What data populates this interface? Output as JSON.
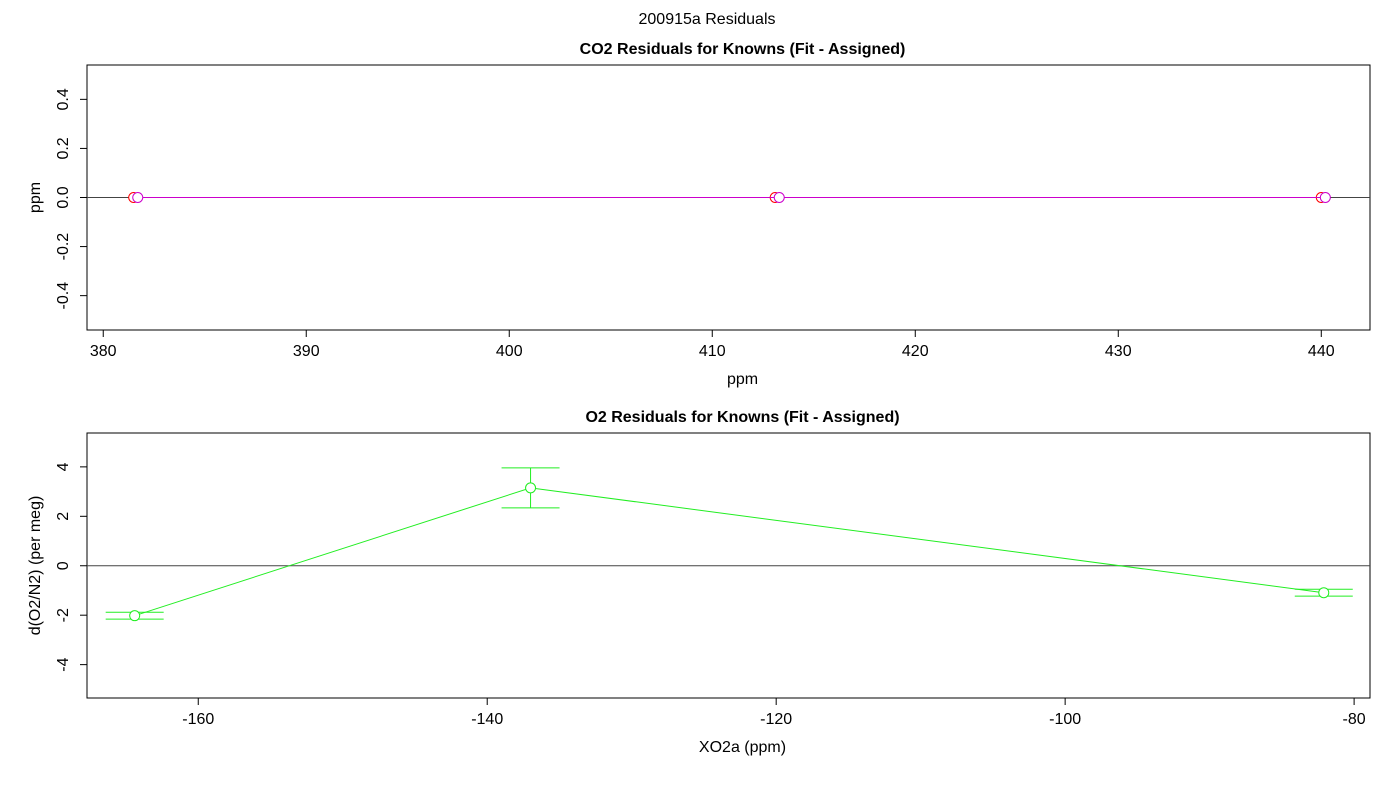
{
  "title": "200915a  Residuals",
  "chart_data": [
    {
      "type": "scatter",
      "title": "CO2 Residuals for Knowns (Fit - Assigned)",
      "x_label": "ppm",
      "y_label": "ppm",
      "xlim": [
        379.2,
        442.4
      ],
      "ylim": [
        -0.54,
        0.54
      ],
      "xticks": [
        380,
        390,
        400,
        410,
        420,
        430,
        440
      ],
      "yticks": [
        -0.4,
        -0.2,
        {
          "value": 0,
          "label": "0.0"
        },
        0.2,
        0.4
      ],
      "hline": 0,
      "series": [
        {
          "color": "#ff0000",
          "x": [
            381.5,
            413.1,
            440.0
          ],
          "values": [
            0,
            0,
            0
          ]
        },
        {
          "color": "#cc00cc",
          "x": [
            381.7,
            413.3,
            440.2
          ],
          "values": [
            0,
            0,
            0
          ]
        }
      ]
    },
    {
      "type": "scatter",
      "title": "O2 Residuals for Knowns (Fit - Assigned)",
      "x_label": "XO2a (ppm)",
      "y_label": "d(O2/N2) (per meg)",
      "xlim": [
        -167.7,
        -78.9
      ],
      "ylim": [
        -5.35,
        5.37
      ],
      "xticks": [
        -160,
        -140,
        -120,
        -100,
        -80
      ],
      "yticks": [
        -4,
        -2,
        0,
        2,
        4
      ],
      "hline": 0,
      "series": [
        {
          "color": "#22ee22",
          "x": [
            -164.4,
            -137.0,
            -82.1
          ],
          "values": [
            -2.02,
            3.15,
            -1.09
          ],
          "errors": [
            0.14,
            0.81,
            0.14
          ]
        }
      ]
    }
  ]
}
